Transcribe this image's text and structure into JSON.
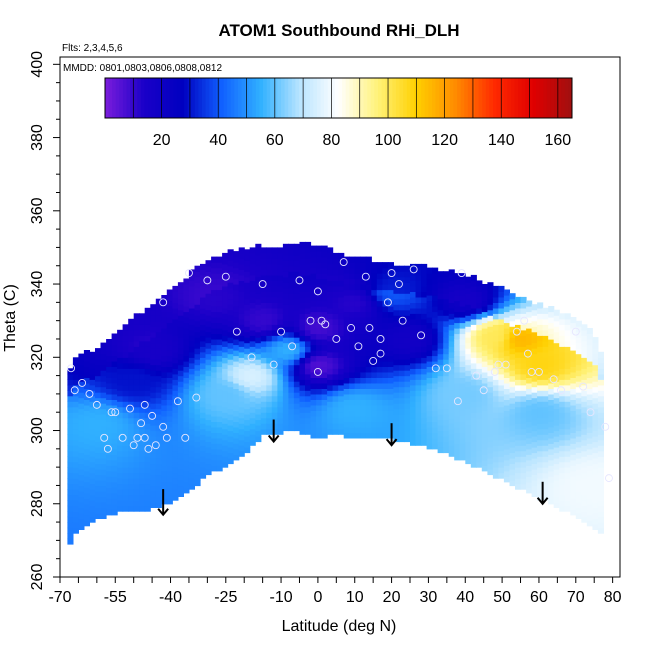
{
  "chart_data": {
    "type": "heatmap",
    "title": "ATOM1 Southbound RHi_DLH",
    "annotation_flights": "Flts: 2,3,4,5,6",
    "annotation_dates": "MMDD: 0801,0803,0806,0808,0812",
    "xlabel": "Latitude (deg N)",
    "ylabel": "Theta (C)",
    "xlim": [
      -70,
      82
    ],
    "ylim": [
      260,
      402
    ],
    "x_ticks": [
      -70,
      -55,
      -40,
      -25,
      -10,
      0,
      10,
      20,
      30,
      40,
      50,
      60,
      70,
      80
    ],
    "y_ticks": [
      260,
      280,
      300,
      320,
      340,
      360,
      380,
      400
    ],
    "colorbar": {
      "range": [
        0,
        165
      ],
      "ticks": [
        20,
        40,
        60,
        80,
        100,
        120,
        140,
        160
      ],
      "colors": [
        "#7b1ddc",
        "#1a00c8",
        "#0000c0",
        "#1060ff",
        "#30b0ff",
        "#b8e4ff",
        "#ffffff",
        "#fff27a",
        "#ffd000",
        "#ff8c00",
        "#ff2a00",
        "#e00000",
        "#a01010"
      ]
    },
    "surface_boundary": {
      "lat": [
        -68,
        -66,
        -62,
        -58,
        -55,
        -50,
        -45,
        -40,
        -35,
        -30,
        -25,
        -20,
        -15,
        -10,
        -5,
        0,
        5,
        10,
        20,
        30,
        40,
        50,
        60,
        70,
        75,
        77
      ],
      "theta": [
        268,
        272,
        275,
        277,
        278,
        278,
        279,
        281,
        284,
        288,
        291,
        294,
        299,
        300,
        300,
        298,
        300,
        298,
        298,
        296,
        292,
        287,
        282,
        277,
        274,
        272
      ]
    },
    "top_boundary": {
      "lat": [
        -68,
        -65,
        -60,
        -55,
        -50,
        -45,
        -40,
        -35,
        -30,
        -25,
        -20,
        -15,
        -10,
        -5,
        0,
        5,
        10,
        20,
        30,
        40,
        50,
        60,
        70,
        75,
        78
      ],
      "theta": [
        316,
        320,
        322,
        326,
        330,
        334,
        338,
        342,
        346,
        348,
        349,
        350,
        350,
        351,
        350,
        348,
        347,
        345,
        344,
        342,
        338,
        334,
        330,
        326,
        318
      ]
    },
    "field_blobs": [
      {
        "lat": -15,
        "theta": 330,
        "value": 10
      },
      {
        "lat": 0,
        "theta": 328,
        "value": 8
      },
      {
        "lat": -28,
        "theta": 336,
        "value": 12
      },
      {
        "lat": 10,
        "theta": 335,
        "value": 12
      },
      {
        "lat": 0,
        "theta": 318,
        "value": 6
      },
      {
        "lat": -45,
        "theta": 322,
        "value": 15
      },
      {
        "lat": 25,
        "theta": 325,
        "value": 18
      },
      {
        "lat": 40,
        "theta": 335,
        "value": 20
      },
      {
        "lat": -50,
        "theta": 314,
        "value": 30
      },
      {
        "lat": 55,
        "theta": 325,
        "value": 115
      },
      {
        "lat": 60,
        "theta": 318,
        "value": 108
      },
      {
        "lat": 48,
        "theta": 326,
        "value": 100
      },
      {
        "lat": -18,
        "theta": 315,
        "value": 75
      },
      {
        "lat": -25,
        "theta": 310,
        "value": 60
      },
      {
        "lat": -8,
        "theta": 322,
        "value": 55
      },
      {
        "lat": 40,
        "theta": 310,
        "value": 62
      },
      {
        "lat": 60,
        "theta": 305,
        "value": 60
      },
      {
        "lat": 10,
        "theta": 306,
        "value": 55
      },
      {
        "lat": -60,
        "theta": 302,
        "value": 55
      },
      {
        "lat": 75,
        "theta": 285,
        "value": 80
      },
      {
        "lat": 20,
        "theta": 338,
        "value": 40
      }
    ],
    "sample_points": [
      {
        "lat": -67,
        "theta": 317
      },
      {
        "lat": -66,
        "theta": 311
      },
      {
        "lat": -64,
        "theta": 313
      },
      {
        "lat": -62,
        "theta": 310
      },
      {
        "lat": -60,
        "theta": 307
      },
      {
        "lat": -58,
        "theta": 298
      },
      {
        "lat": -57,
        "theta": 295
      },
      {
        "lat": -56,
        "theta": 305
      },
      {
        "lat": -55,
        "theta": 305
      },
      {
        "lat": -53,
        "theta": 298
      },
      {
        "lat": -51,
        "theta": 306
      },
      {
        "lat": -50,
        "theta": 296
      },
      {
        "lat": -49,
        "theta": 298
      },
      {
        "lat": -48,
        "theta": 302
      },
      {
        "lat": -47,
        "theta": 307
      },
      {
        "lat": -47,
        "theta": 298
      },
      {
        "lat": -46,
        "theta": 295
      },
      {
        "lat": -45,
        "theta": 304
      },
      {
        "lat": -44,
        "theta": 296
      },
      {
        "lat": -42,
        "theta": 301
      },
      {
        "lat": -41,
        "theta": 298
      },
      {
        "lat": -38,
        "theta": 308
      },
      {
        "lat": -36,
        "theta": 298
      },
      {
        "lat": -33,
        "theta": 309
      },
      {
        "lat": -42,
        "theta": 335
      },
      {
        "lat": -35,
        "theta": 343
      },
      {
        "lat": -30,
        "theta": 341
      },
      {
        "lat": -25,
        "theta": 342
      },
      {
        "lat": -22,
        "theta": 327
      },
      {
        "lat": -18,
        "theta": 320
      },
      {
        "lat": -15,
        "theta": 340
      },
      {
        "lat": -12,
        "theta": 318
      },
      {
        "lat": -10,
        "theta": 327
      },
      {
        "lat": -7,
        "theta": 323
      },
      {
        "lat": -5,
        "theta": 341
      },
      {
        "lat": -2,
        "theta": 330
      },
      {
        "lat": 0,
        "theta": 338
      },
      {
        "lat": 1,
        "theta": 330
      },
      {
        "lat": 2,
        "theta": 329
      },
      {
        "lat": 0,
        "theta": 316
      },
      {
        "lat": 5,
        "theta": 325
      },
      {
        "lat": 7,
        "theta": 346
      },
      {
        "lat": 9,
        "theta": 328
      },
      {
        "lat": 11,
        "theta": 323
      },
      {
        "lat": 13,
        "theta": 342
      },
      {
        "lat": 14,
        "theta": 328
      },
      {
        "lat": 15,
        "theta": 319
      },
      {
        "lat": 17,
        "theta": 321
      },
      {
        "lat": 17,
        "theta": 325
      },
      {
        "lat": 19,
        "theta": 335
      },
      {
        "lat": 20,
        "theta": 343
      },
      {
        "lat": 22,
        "theta": 340
      },
      {
        "lat": 23,
        "theta": 330
      },
      {
        "lat": 26,
        "theta": 344
      },
      {
        "lat": 28,
        "theta": 326
      },
      {
        "lat": 32,
        "theta": 317
      },
      {
        "lat": 35,
        "theta": 317
      },
      {
        "lat": 38,
        "theta": 308
      },
      {
        "lat": 39,
        "theta": 343
      },
      {
        "lat": 43,
        "theta": 315
      },
      {
        "lat": 45,
        "theta": 311
      },
      {
        "lat": 48,
        "theta": 316
      },
      {
        "lat": 49,
        "theta": 318
      },
      {
        "lat": 51,
        "theta": 318
      },
      {
        "lat": 54,
        "theta": 327
      },
      {
        "lat": 56,
        "theta": 330
      },
      {
        "lat": 57,
        "theta": 321
      },
      {
        "lat": 58,
        "theta": 316
      },
      {
        "lat": 60,
        "theta": 316
      },
      {
        "lat": 64,
        "theta": 314
      },
      {
        "lat": 66,
        "theta": 311
      },
      {
        "lat": 70,
        "theta": 327
      },
      {
        "lat": 72,
        "theta": 312
      },
      {
        "lat": 74,
        "theta": 305
      },
      {
        "lat": 78,
        "theta": 301
      },
      {
        "lat": 79,
        "theta": 287
      }
    ],
    "arrows": [
      {
        "lat": -42,
        "theta_top": 284,
        "theta_bottom": 277
      },
      {
        "lat": -12,
        "theta_top": 303,
        "theta_bottom": 297
      },
      {
        "lat": 20,
        "theta_top": 302,
        "theta_bottom": 296
      },
      {
        "lat": 61,
        "theta_top": 286,
        "theta_bottom": 280
      }
    ]
  }
}
